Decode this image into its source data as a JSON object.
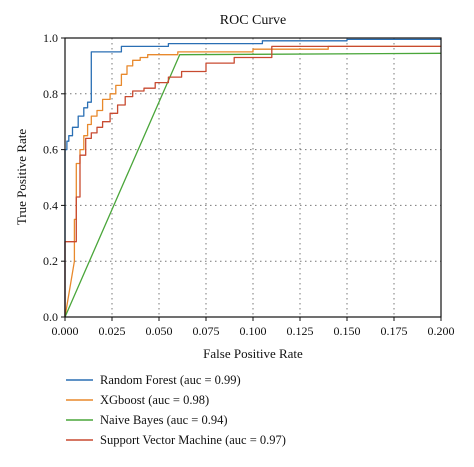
{
  "chart_data": {
    "type": "line",
    "title": "ROC Curve",
    "xlabel": "False Positive Rate",
    "ylabel": "True Positive Rate",
    "xlim": [
      0.0,
      0.2
    ],
    "ylim": [
      0.0,
      1.0
    ],
    "x_ticks": [
      "0.000",
      "0.025",
      "0.050",
      "0.075",
      "0.100",
      "0.125",
      "0.150",
      "0.175",
      "0.200"
    ],
    "y_ticks": [
      "0.0",
      "0.2",
      "0.4",
      "0.6",
      "0.8",
      "1.0"
    ],
    "grid": true,
    "legend_position": "below",
    "series": [
      {
        "name": "Random Forest (auc = 0.99)",
        "color": "#2a6fb4",
        "x": [
          0.0,
          0.0,
          0.001,
          0.001,
          0.002,
          0.002,
          0.004,
          0.004,
          0.007,
          0.007,
          0.01,
          0.01,
          0.012,
          0.012,
          0.014,
          0.014,
          0.03,
          0.03,
          0.055,
          0.055,
          0.105,
          0.105,
          0.15,
          0.15,
          0.2
        ],
        "y": [
          0.0,
          0.6,
          0.6,
          0.63,
          0.63,
          0.65,
          0.65,
          0.68,
          0.68,
          0.72,
          0.72,
          0.75,
          0.75,
          0.77,
          0.77,
          0.95,
          0.95,
          0.97,
          0.97,
          0.98,
          0.98,
          0.99,
          0.99,
          0.995,
          0.995
        ]
      },
      {
        "name": "XGboost (auc = 0.98)",
        "color": "#e8892c",
        "x": [
          0.0,
          0.005,
          0.005,
          0.006,
          0.006,
          0.008,
          0.008,
          0.01,
          0.01,
          0.012,
          0.012,
          0.014,
          0.014,
          0.017,
          0.017,
          0.02,
          0.02,
          0.024,
          0.024,
          0.027,
          0.027,
          0.03,
          0.03,
          0.033,
          0.033,
          0.036,
          0.036,
          0.04,
          0.04,
          0.044,
          0.044,
          0.06,
          0.06,
          0.1,
          0.1,
          0.14,
          0.14,
          0.2
        ],
        "y": [
          0.0,
          0.2,
          0.35,
          0.35,
          0.55,
          0.55,
          0.6,
          0.6,
          0.65,
          0.65,
          0.69,
          0.69,
          0.72,
          0.72,
          0.74,
          0.74,
          0.78,
          0.78,
          0.8,
          0.8,
          0.83,
          0.83,
          0.87,
          0.87,
          0.9,
          0.9,
          0.92,
          0.92,
          0.93,
          0.93,
          0.94,
          0.94,
          0.95,
          0.95,
          0.96,
          0.96,
          0.97,
          0.97
        ]
      },
      {
        "name": "Naive Bayes (auc = 0.94)",
        "color": "#4aa63a",
        "x": [
          0.0,
          0.061,
          0.2
        ],
        "y": [
          0.0,
          0.94,
          0.945
        ]
      },
      {
        "name": "Support Vector Machine (auc = 0.97)",
        "color": "#c84a30",
        "x": [
          0.0,
          0.0,
          0.006,
          0.006,
          0.008,
          0.008,
          0.011,
          0.011,
          0.014,
          0.014,
          0.017,
          0.017,
          0.02,
          0.02,
          0.024,
          0.024,
          0.028,
          0.028,
          0.032,
          0.032,
          0.036,
          0.036,
          0.042,
          0.042,
          0.048,
          0.048,
          0.055,
          0.055,
          0.062,
          0.062,
          0.075,
          0.075,
          0.09,
          0.09,
          0.11,
          0.11,
          0.2
        ],
        "y": [
          0.0,
          0.27,
          0.27,
          0.43,
          0.43,
          0.58,
          0.58,
          0.64,
          0.64,
          0.66,
          0.66,
          0.68,
          0.68,
          0.7,
          0.7,
          0.73,
          0.73,
          0.76,
          0.76,
          0.79,
          0.79,
          0.81,
          0.81,
          0.82,
          0.82,
          0.84,
          0.84,
          0.86,
          0.86,
          0.88,
          0.88,
          0.91,
          0.91,
          0.93,
          0.93,
          0.97,
          0.97
        ]
      }
    ]
  }
}
